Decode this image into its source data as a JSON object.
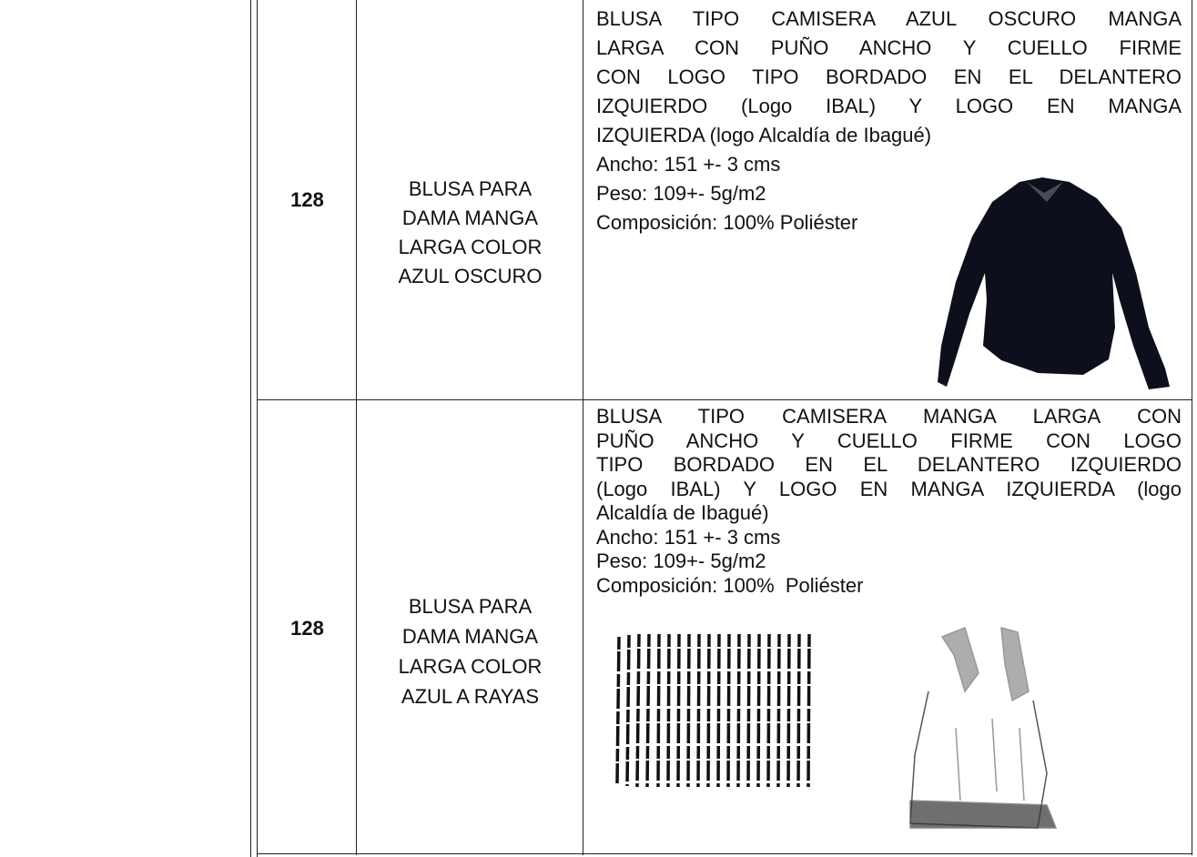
{
  "table": {
    "rows": [
      {
        "number": "128",
        "name": [
          "BLUSA PARA",
          "DAMA MANGA",
          "LARGA COLOR",
          "AZUL OSCURO"
        ],
        "description": [
          "BLUSA TIPO CAMISERA AZUL OSCURO MANGA",
          "LARGA CON PUÑO ANCHO Y CUELLO FIRME",
          "CON LOGO TIPO BORDADO EN EL DELANTERO",
          "IZQUIERDO (Logo IBAL) Y LOGO EN MANGA",
          "IZQUIERDA (logo Alcaldía de Ibagué)"
        ],
        "specs": [
          "Ancho: 151 +- 3 cms",
          "Peso: 109+- 5g/m2",
          "Composición: 100% Poliéster"
        ]
      },
      {
        "number": "128",
        "name": [
          "BLUSA PARA",
          "DAMA MANGA",
          "LARGA COLOR",
          "AZUL A RAYAS"
        ],
        "description": [
          "BLUSA TIPO CAMISERA MANGA LARGA CON",
          "PUÑO ANCHO Y CUELLO FIRME CON LOGO",
          "TIPO BORDADO EN EL DELANTERO IZQUIERDO",
          "(Logo IBAL) Y LOGO EN MANGA IZQUIERDA (logo",
          "Alcaldía de Ibagué)"
        ],
        "specs": [
          "Ancho: 151 +- 3 cms",
          "Peso: 109+- 5g/m2",
          "Composición: 100%  Poliéster"
        ]
      }
    ]
  }
}
